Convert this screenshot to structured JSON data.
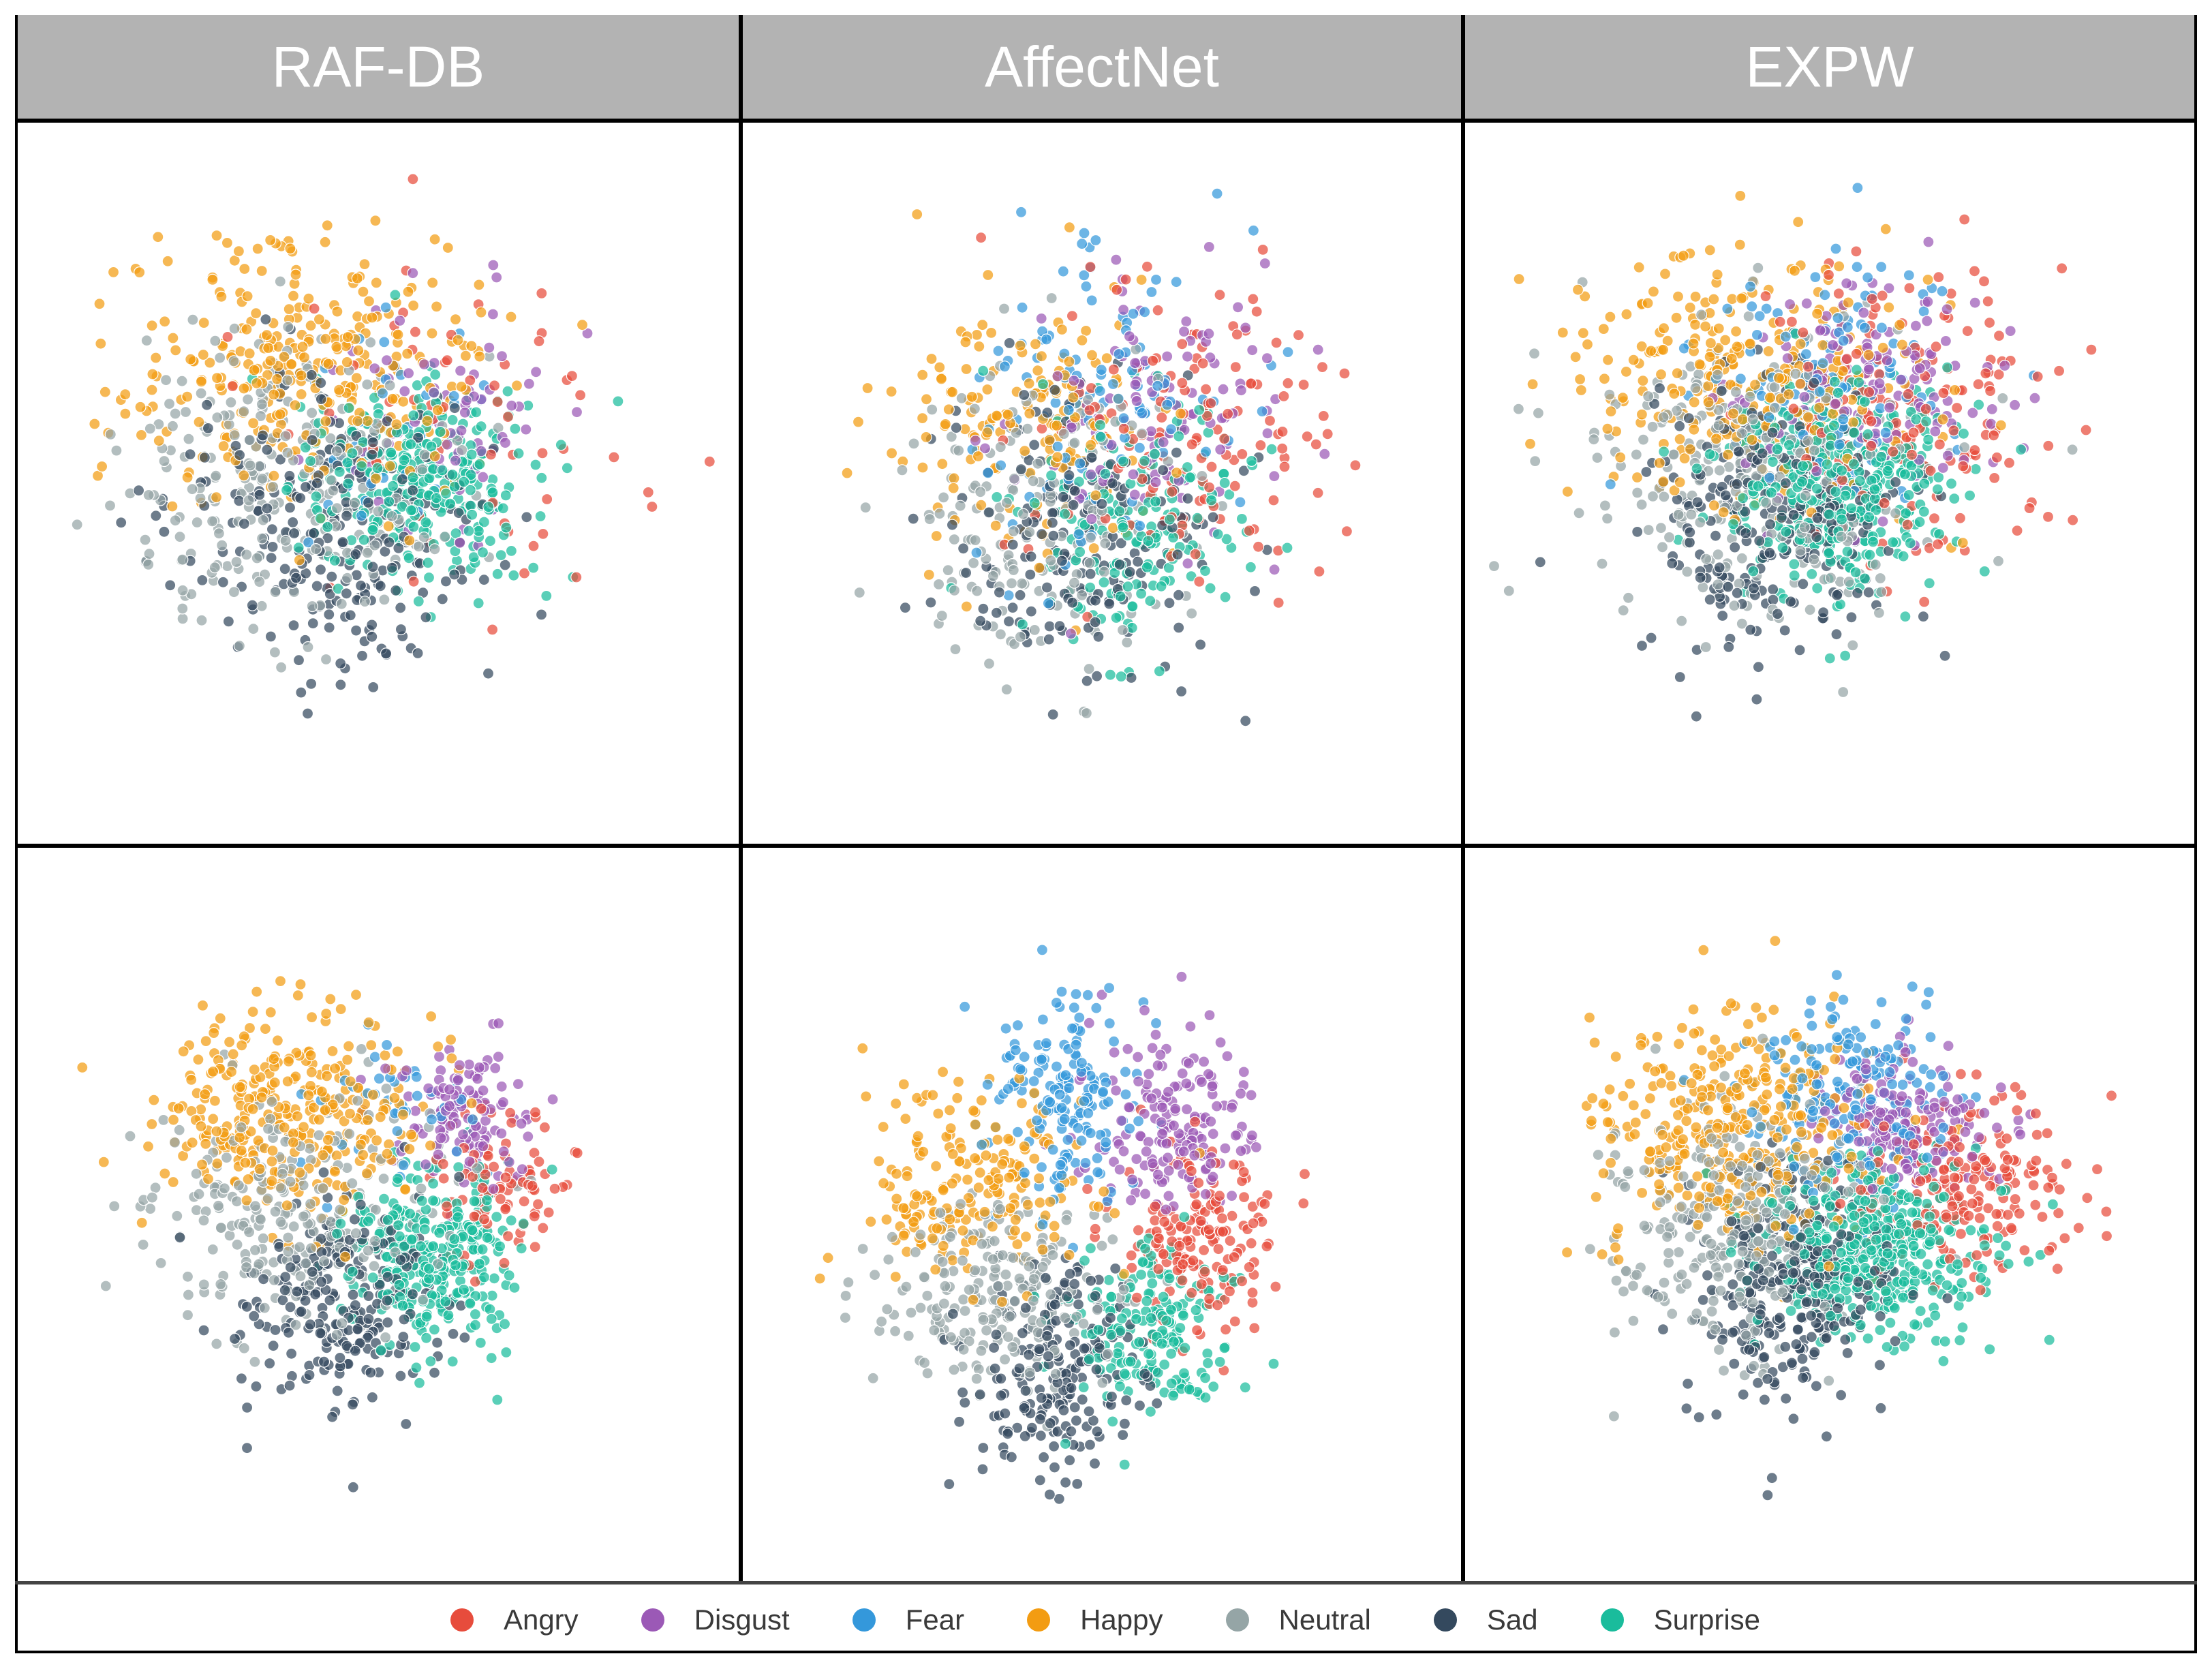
{
  "figure": {
    "columns": [
      "RAF-DB",
      "AffectNet",
      "EXPW"
    ]
  },
  "legend": [
    {
      "label": "Angry",
      "color": "#e74c3c"
    },
    {
      "label": "Disgust",
      "color": "#9b59b6"
    },
    {
      "label": "Fear",
      "color": "#3498db"
    },
    {
      "label": "Happy",
      "color": "#f39c12"
    },
    {
      "label": "Neutral",
      "color": "#95a5a6"
    },
    {
      "label": "Sad",
      "color": "#34495e"
    },
    {
      "label": "Surprise",
      "color": "#1abc9c"
    }
  ],
  "chart_data": [
    {
      "type": "scatter",
      "dataset": "RAF-DB",
      "row": "top",
      "xlim": [
        -5,
        5
      ],
      "ylim": [
        -5,
        5
      ],
      "series": [
        {
          "name": "Angry",
          "n": 60,
          "center": [
            1.2,
            0.6
          ],
          "spread": [
            1.3,
            1.2
          ]
        },
        {
          "name": "Disgust",
          "n": 70,
          "center": [
            0.9,
            1.2
          ],
          "spread": [
            0.9,
            0.8
          ]
        },
        {
          "name": "Fear",
          "n": 40,
          "center": [
            0.2,
            0.7
          ],
          "spread": [
            0.9,
            0.9
          ]
        },
        {
          "name": "Happy",
          "n": 320,
          "center": [
            -1.0,
            1.6
          ],
          "spread": [
            1.2,
            0.9
          ]
        },
        {
          "name": "Neutral",
          "n": 260,
          "center": [
            -1.4,
            0.0
          ],
          "spread": [
            1.2,
            1.0
          ]
        },
        {
          "name": "Sad",
          "n": 260,
          "center": [
            -0.6,
            -0.6
          ],
          "spread": [
            1.0,
            1.0
          ]
        },
        {
          "name": "Surprise",
          "n": 300,
          "center": [
            0.6,
            0.0
          ],
          "spread": [
            0.8,
            0.7
          ]
        }
      ]
    },
    {
      "type": "scatter",
      "dataset": "AffectNet",
      "row": "top",
      "xlim": [
        -5,
        5
      ],
      "ylim": [
        -5,
        5
      ],
      "series": [
        {
          "name": "Angry",
          "n": 140,
          "center": [
            1.1,
            0.5
          ],
          "spread": [
            1.0,
            1.1
          ]
        },
        {
          "name": "Disgust",
          "n": 110,
          "center": [
            0.7,
            1.1
          ],
          "spread": [
            0.9,
            1.0
          ]
        },
        {
          "name": "Fear",
          "n": 120,
          "center": [
            0.0,
            1.2
          ],
          "spread": [
            0.9,
            1.1
          ]
        },
        {
          "name": "Happy",
          "n": 160,
          "center": [
            -1.1,
            0.8
          ],
          "spread": [
            1.0,
            0.9
          ]
        },
        {
          "name": "Neutral",
          "n": 180,
          "center": [
            -0.9,
            -0.5
          ],
          "spread": [
            1.0,
            1.0
          ]
        },
        {
          "name": "Sad",
          "n": 180,
          "center": [
            -0.3,
            -0.7
          ],
          "spread": [
            0.9,
            1.0
          ]
        },
        {
          "name": "Surprise",
          "n": 180,
          "center": [
            0.5,
            -0.5
          ],
          "spread": [
            0.8,
            0.8
          ]
        }
      ]
    },
    {
      "type": "scatter",
      "dataset": "EXPW",
      "row": "top",
      "xlim": [
        -5,
        5
      ],
      "ylim": [
        -5,
        5
      ],
      "series": [
        {
          "name": "Angry",
          "n": 160,
          "center": [
            1.1,
            0.9
          ],
          "spread": [
            1.0,
            1.1
          ]
        },
        {
          "name": "Disgust",
          "n": 140,
          "center": [
            0.6,
            1.3
          ],
          "spread": [
            0.9,
            0.8
          ]
        },
        {
          "name": "Fear",
          "n": 120,
          "center": [
            0.0,
            1.4
          ],
          "spread": [
            1.0,
            0.9
          ]
        },
        {
          "name": "Happy",
          "n": 300,
          "center": [
            -1.0,
            1.3
          ],
          "spread": [
            1.2,
            0.9
          ]
        },
        {
          "name": "Neutral",
          "n": 260,
          "center": [
            -1.1,
            0.2
          ],
          "spread": [
            1.1,
            1.0
          ]
        },
        {
          "name": "Sad",
          "n": 260,
          "center": [
            -0.7,
            -0.4
          ],
          "spread": [
            0.9,
            1.0
          ]
        },
        {
          "name": "Surprise",
          "n": 380,
          "center": [
            0.2,
            0.0
          ],
          "spread": [
            0.8,
            0.7
          ]
        }
      ]
    },
    {
      "type": "scatter",
      "dataset": "RAF-DB",
      "row": "bottom",
      "xlim": [
        -5,
        5
      ],
      "ylim": [
        -5,
        5
      ],
      "series": [
        {
          "name": "Angry",
          "n": 90,
          "center": [
            1.7,
            0.4
          ],
          "spread": [
            0.5,
            0.5
          ]
        },
        {
          "name": "Disgust",
          "n": 120,
          "center": [
            1.2,
            1.4
          ],
          "spread": [
            0.5,
            0.5
          ]
        },
        {
          "name": "Fear",
          "n": 40,
          "center": [
            0.5,
            1.7
          ],
          "spread": [
            0.6,
            0.5
          ]
        },
        {
          "name": "Happy",
          "n": 330,
          "center": [
            -1.2,
            1.4
          ],
          "spread": [
            0.9,
            0.7
          ]
        },
        {
          "name": "Neutral",
          "n": 260,
          "center": [
            -1.2,
            0.0
          ],
          "spread": [
            1.0,
            0.8
          ]
        },
        {
          "name": "Sad",
          "n": 230,
          "center": [
            -0.5,
            -1.2
          ],
          "spread": [
            0.7,
            0.7
          ]
        },
        {
          "name": "Surprise",
          "n": 300,
          "center": [
            0.8,
            -0.6
          ],
          "spread": [
            0.6,
            0.6
          ]
        }
      ]
    },
    {
      "type": "scatter",
      "dataset": "AffectNet",
      "row": "bottom",
      "xlim": [
        -5,
        5
      ],
      "ylim": [
        -5,
        5
      ],
      "series": [
        {
          "name": "Angry",
          "n": 170,
          "center": [
            1.4,
            -0.4
          ],
          "spread": [
            0.6,
            0.6
          ]
        },
        {
          "name": "Disgust",
          "n": 170,
          "center": [
            1.0,
            1.2
          ],
          "spread": [
            0.6,
            0.6
          ]
        },
        {
          "name": "Fear",
          "n": 170,
          "center": [
            -0.5,
            1.6
          ],
          "spread": [
            0.5,
            0.7
          ]
        },
        {
          "name": "Happy",
          "n": 200,
          "center": [
            -1.9,
            0.4
          ],
          "spread": [
            0.8,
            0.7
          ]
        },
        {
          "name": "Neutral",
          "n": 220,
          "center": [
            -1.4,
            -1.1
          ],
          "spread": [
            0.9,
            0.6
          ]
        },
        {
          "name": "Sad",
          "n": 200,
          "center": [
            -0.6,
            -2.1
          ],
          "spread": [
            0.6,
            0.7
          ]
        },
        {
          "name": "Surprise",
          "n": 180,
          "center": [
            0.6,
            -1.6
          ],
          "spread": [
            0.6,
            0.6
          ]
        }
      ]
    },
    {
      "type": "scatter",
      "dataset": "EXPW",
      "row": "bottom",
      "xlim": [
        -5,
        5
      ],
      "ylim": [
        -5,
        5
      ],
      "series": [
        {
          "name": "Angry",
          "n": 200,
          "center": [
            1.8,
            0.4
          ],
          "spread": [
            0.7,
            0.6
          ]
        },
        {
          "name": "Disgust",
          "n": 170,
          "center": [
            1.0,
            1.2
          ],
          "spread": [
            0.6,
            0.5
          ]
        },
        {
          "name": "Fear",
          "n": 200,
          "center": [
            0.3,
            1.6
          ],
          "spread": [
            0.7,
            0.6
          ]
        },
        {
          "name": "Happy",
          "n": 340,
          "center": [
            -1.2,
            1.2
          ],
          "spread": [
            0.9,
            0.8
          ]
        },
        {
          "name": "Neutral",
          "n": 300,
          "center": [
            -1.3,
            -0.2
          ],
          "spread": [
            0.9,
            0.8
          ]
        },
        {
          "name": "Sad",
          "n": 300,
          "center": [
            -0.5,
            -1.0
          ],
          "spread": [
            0.7,
            0.8
          ]
        },
        {
          "name": "Surprise",
          "n": 420,
          "center": [
            0.6,
            -0.4
          ],
          "spread": [
            0.8,
            0.6
          ]
        }
      ]
    }
  ]
}
